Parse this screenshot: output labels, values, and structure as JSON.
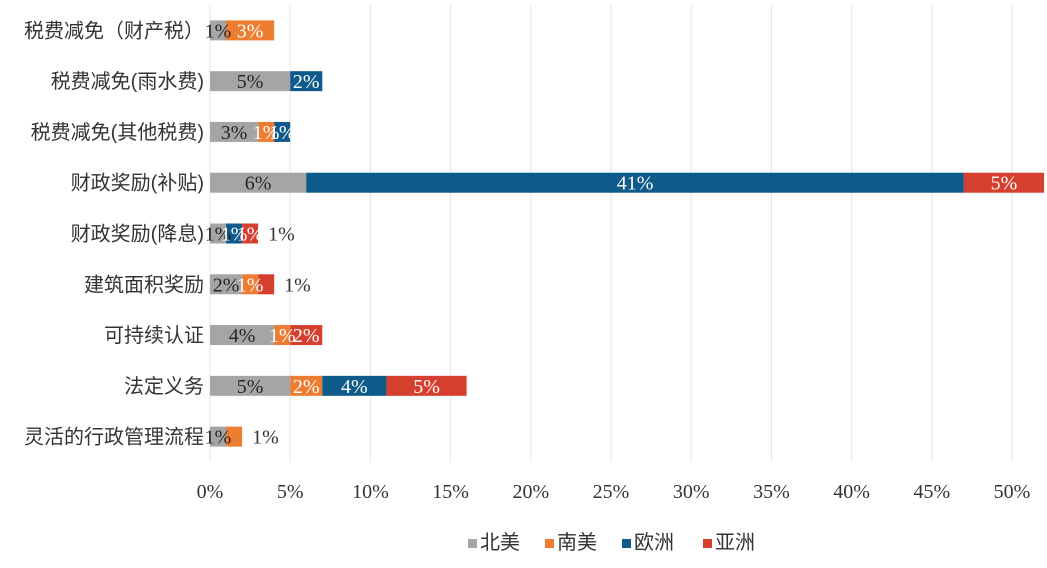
{
  "chart_data": {
    "type": "bar",
    "orientation": "horizontal",
    "stacked": true,
    "categories": [
      "税费减免（财产税）",
      "税费减免(雨水费)",
      "税费减免(其他税费)",
      "财政奖励(补贴)",
      "财政奖励(降息)",
      "建筑面积奖励",
      "可持续认证",
      "法定义务",
      "灵活的行政管理流程"
    ],
    "series": [
      {
        "name": "北美",
        "color": "#a5a5a5",
        "values": [
          1,
          5,
          3,
          6,
          1,
          2,
          4,
          5,
          1
        ]
      },
      {
        "name": "南美",
        "color": "#ed7d31",
        "values": [
          3,
          0,
          1,
          0,
          0,
          1,
          1,
          2,
          1
        ]
      },
      {
        "name": "欧洲",
        "color": "#0e5a8a",
        "values": [
          0,
          2,
          1,
          41,
          1,
          0,
          0,
          4,
          0
        ]
      },
      {
        "name": "亚洲",
        "color": "#d63f2e",
        "values": [
          0,
          0,
          0,
          5,
          1,
          1,
          2,
          5,
          0
        ]
      }
    ],
    "data_labels": [
      [
        {
          "text": "1%",
          "series": 0
        },
        {
          "text": "3%",
          "series": 1
        }
      ],
      [
        {
          "text": "5%",
          "series": 0
        },
        {
          "text": "2%",
          "series": 2
        }
      ],
      [
        {
          "text": "3%",
          "series": 0
        },
        {
          "text": "1%",
          "series": 1
        },
        {
          "text": "1%",
          "series": 2
        }
      ],
      [
        {
          "text": "6%",
          "series": 0
        },
        {
          "text": "41%",
          "series": 2
        },
        {
          "text": "5%",
          "series": 3
        }
      ],
      [
        {
          "text": "1%",
          "series": 0
        },
        {
          "text": "1%",
          "series": 2
        },
        {
          "text": "1%",
          "series": 3
        },
        {
          "text": "1%",
          "series": "outside"
        }
      ],
      [
        {
          "text": "2%",
          "series": 0
        },
        {
          "text": "1%",
          "series": 1
        },
        {
          "text": "1%",
          "series": "outside"
        }
      ],
      [
        {
          "text": "4%",
          "series": 0
        },
        {
          "text": "1%",
          "series": 1
        },
        {
          "text": "2%",
          "series": 3
        }
      ],
      [
        {
          "text": "5%",
          "series": 0
        },
        {
          "text": "2%",
          "series": 1
        },
        {
          "text": "4%",
          "series": 2
        },
        {
          "text": "5%",
          "series": 3
        }
      ],
      [
        {
          "text": "1%",
          "series": 0
        },
        {
          "text": "1%",
          "series": "outside"
        }
      ]
    ],
    "x_ticks": [
      "0%",
      "5%",
      "10%",
      "15%",
      "20%",
      "25%",
      "30%",
      "35%",
      "40%",
      "45%",
      "50%"
    ],
    "xlim": [
      0,
      50
    ],
    "x_unit": "%",
    "grid": "vertical",
    "legend": "bottom-center",
    "title": "",
    "xlabel": "",
    "ylabel": ""
  }
}
